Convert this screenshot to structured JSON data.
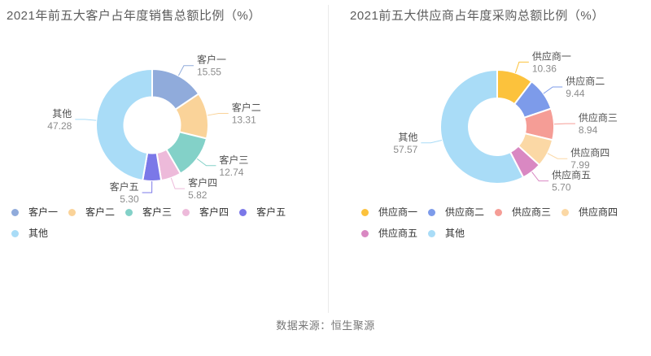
{
  "source_note": "数据来源：恒生聚源",
  "chart_data": [
    {
      "type": "pie",
      "subtype": "donut",
      "title": "2021年前五大客户占年度销售总额比例（%）",
      "value_unit": "%",
      "value_decimals": 2,
      "legend_position": "bottom",
      "label_style": "outside-with-leader-line",
      "slices": [
        {
          "name": "客户一",
          "value": 15.55,
          "color": "#90ABDB"
        },
        {
          "name": "客户二",
          "value": 13.31,
          "color": "#FAD399"
        },
        {
          "name": "客户三",
          "value": 12.74,
          "color": "#83D1C8"
        },
        {
          "name": "客户四",
          "value": 5.82,
          "color": "#EDBADA"
        },
        {
          "name": "客户五",
          "value": 5.3,
          "color": "#7B78E8"
        },
        {
          "name": "其他",
          "value": 47.28,
          "color": "#A9DCF7"
        }
      ]
    },
    {
      "type": "pie",
      "subtype": "donut",
      "title": "2021前五大供应商占年度采购总额比例（%）",
      "value_unit": "%",
      "value_decimals": 2,
      "legend_position": "bottom",
      "label_style": "outside-with-leader-line",
      "slices": [
        {
          "name": "供应商一",
          "value": 10.36,
          "color": "#FCC23C"
        },
        {
          "name": "供应商二",
          "value": 9.44,
          "color": "#7D9BEA"
        },
        {
          "name": "供应商三",
          "value": 8.94,
          "color": "#F59D96"
        },
        {
          "name": "供应商四",
          "value": 7.99,
          "color": "#FBD8A5"
        },
        {
          "name": "供应商五",
          "value": 5.7,
          "color": "#D988C2"
        },
        {
          "name": "其他",
          "value": 57.57,
          "color": "#A9DCF7"
        }
      ]
    }
  ]
}
